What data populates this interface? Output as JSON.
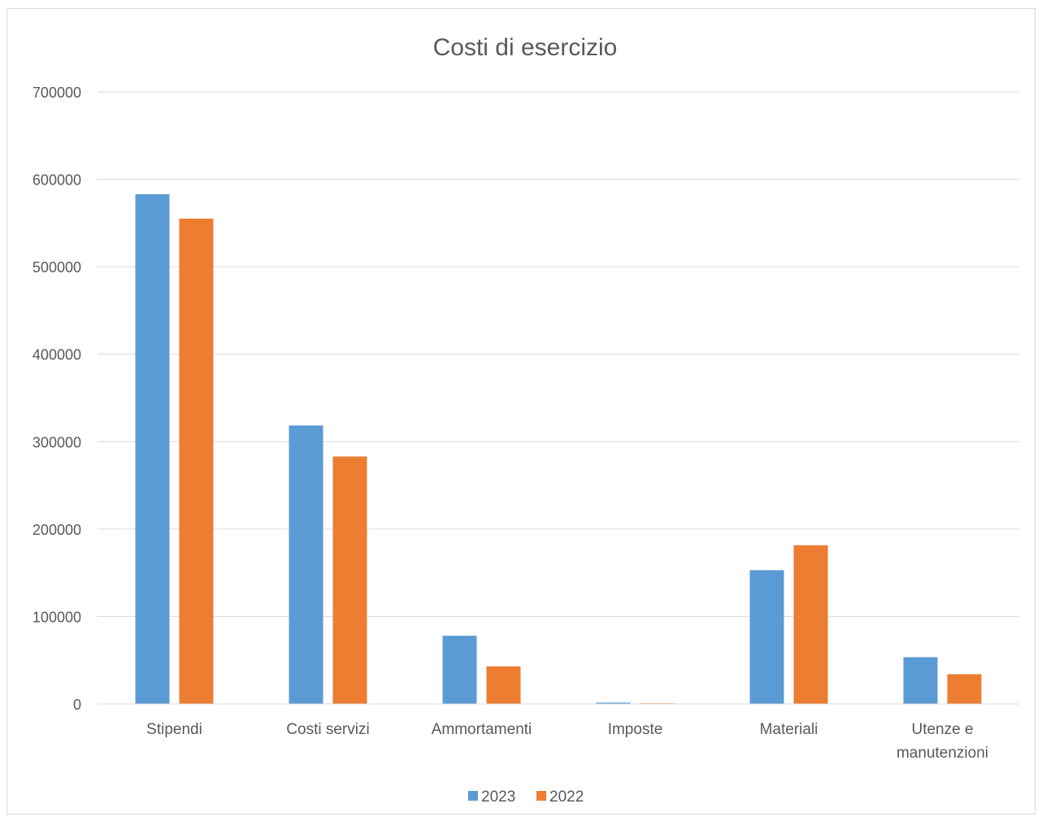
{
  "chart_data": {
    "type": "bar",
    "title": "Costi di esercizio",
    "xlabel": "",
    "ylabel": "",
    "ylim": [
      0,
      700000
    ],
    "yticks": [
      0,
      100000,
      200000,
      300000,
      400000,
      500000,
      600000,
      700000
    ],
    "grid": true,
    "legend_position": "bottom",
    "categories": [
      [
        "Stipendi"
      ],
      [
        "Costi servizi"
      ],
      [
        "Ammortamenti"
      ],
      [
        "Imposte"
      ],
      [
        "Materiali"
      ],
      [
        "Utenze e",
        "manutenzioni"
      ]
    ],
    "series": [
      {
        "name": "2023",
        "color": "#5B9BD5",
        "values": [
          583000,
          318500,
          78000,
          1500,
          153000,
          53500
        ]
      },
      {
        "name": "2022",
        "color": "#ED7D31",
        "values": [
          555000,
          283000,
          43000,
          500,
          181500,
          34000
        ]
      }
    ]
  }
}
